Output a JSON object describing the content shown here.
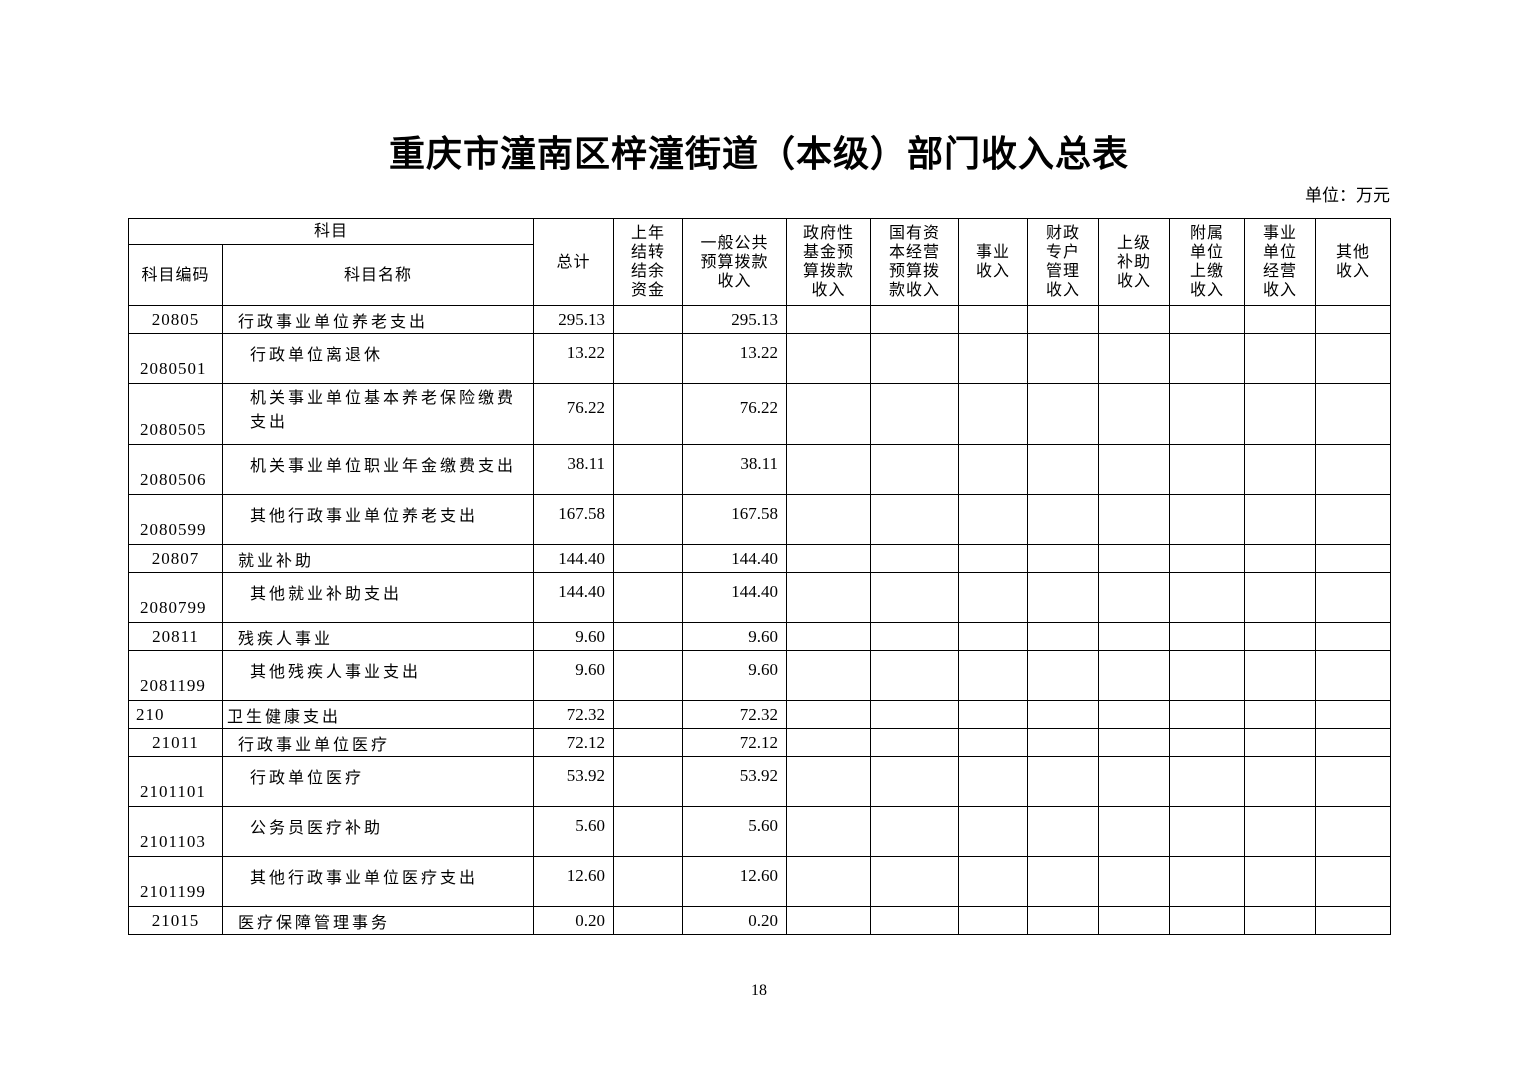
{
  "title": "重庆市潼南区梓潼街道（本级）部门收入总表",
  "unit_label": "单位：万元",
  "page_number": "18",
  "table": {
    "header": {
      "subject_group": "科目",
      "subject_code": "科目编码",
      "subject_name": "科目名称",
      "columns": [
        {
          "label": "总计"
        },
        {
          "label": "上年\n结转\n结余\n资金"
        },
        {
          "label": "一般公共\n预算拨款\n收入"
        },
        {
          "label": "政府性\n基金预\n算拨款\n收入"
        },
        {
          "label": "国有资\n本经营\n预算拨\n款收入"
        },
        {
          "label": "事业\n收入"
        },
        {
          "label": "财政\n专户\n管理\n收入"
        },
        {
          "label": "上级\n补助\n收入"
        },
        {
          "label": "附属\n单位\n上缴\n收入"
        },
        {
          "label": "事业\n单位\n经营\n收入"
        },
        {
          "label": "其他\n收入"
        }
      ]
    },
    "rows": [
      {
        "code": "20805",
        "name": "行政事业单位养老支出",
        "level": 2,
        "tall": false,
        "values": [
          "295.13",
          "",
          "295.13",
          "",
          "",
          "",
          "",
          "",
          "",
          "",
          ""
        ]
      },
      {
        "code": "2080501",
        "name": "行政单位离退休",
        "level": 3,
        "tall": true,
        "values": [
          "13.22",
          "",
          "13.22",
          "",
          "",
          "",
          "",
          "",
          "",
          "",
          ""
        ]
      },
      {
        "code": "2080505",
        "name": "机关事业单位基本养老保险缴费支出",
        "level": 3,
        "tall": true,
        "values": [
          "76.22",
          "",
          "76.22",
          "",
          "",
          "",
          "",
          "",
          "",
          "",
          ""
        ]
      },
      {
        "code": "2080506",
        "name": "机关事业单位职业年金缴费支出",
        "level": 3,
        "tall": true,
        "values": [
          "38.11",
          "",
          "38.11",
          "",
          "",
          "",
          "",
          "",
          "",
          "",
          ""
        ]
      },
      {
        "code": "2080599",
        "name": "其他行政事业单位养老支出",
        "level": 3,
        "tall": true,
        "values": [
          "167.58",
          "",
          "167.58",
          "",
          "",
          "",
          "",
          "",
          "",
          "",
          ""
        ]
      },
      {
        "code": "20807",
        "name": "就业补助",
        "level": 2,
        "tall": false,
        "values": [
          "144.40",
          "",
          "144.40",
          "",
          "",
          "",
          "",
          "",
          "",
          "",
          ""
        ]
      },
      {
        "code": "2080799",
        "name": "其他就业补助支出",
        "level": 3,
        "tall": true,
        "values": [
          "144.40",
          "",
          "144.40",
          "",
          "",
          "",
          "",
          "",
          "",
          "",
          ""
        ]
      },
      {
        "code": "20811",
        "name": "残疾人事业",
        "level": 2,
        "tall": false,
        "values": [
          "9.60",
          "",
          "9.60",
          "",
          "",
          "",
          "",
          "",
          "",
          "",
          ""
        ]
      },
      {
        "code": "2081199",
        "name": "其他残疾人事业支出",
        "level": 3,
        "tall": true,
        "values": [
          "9.60",
          "",
          "9.60",
          "",
          "",
          "",
          "",
          "",
          "",
          "",
          ""
        ]
      },
      {
        "code": "210",
        "name": "卫生健康支出",
        "level": 1,
        "tall": false,
        "values": [
          "72.32",
          "",
          "72.32",
          "",
          "",
          "",
          "",
          "",
          "",
          "",
          ""
        ]
      },
      {
        "code": "21011",
        "name": "行政事业单位医疗",
        "level": 2,
        "tall": false,
        "values": [
          "72.12",
          "",
          "72.12",
          "",
          "",
          "",
          "",
          "",
          "",
          "",
          ""
        ]
      },
      {
        "code": "2101101",
        "name": "行政单位医疗",
        "level": 3,
        "tall": true,
        "values": [
          "53.92",
          "",
          "53.92",
          "",
          "",
          "",
          "",
          "",
          "",
          "",
          ""
        ]
      },
      {
        "code": "2101103",
        "name": "公务员医疗补助",
        "level": 3,
        "tall": true,
        "values": [
          "5.60",
          "",
          "5.60",
          "",
          "",
          "",
          "",
          "",
          "",
          "",
          ""
        ]
      },
      {
        "code": "2101199",
        "name": "其他行政事业单位医疗支出",
        "level": 3,
        "tall": true,
        "values": [
          "12.60",
          "",
          "12.60",
          "",
          "",
          "",
          "",
          "",
          "",
          "",
          ""
        ]
      },
      {
        "code": "21015",
        "name": "医疗保障管理事务",
        "level": 2,
        "tall": false,
        "values": [
          "0.20",
          "",
          "0.20",
          "",
          "",
          "",
          "",
          "",
          "",
          "",
          ""
        ]
      }
    ]
  }
}
